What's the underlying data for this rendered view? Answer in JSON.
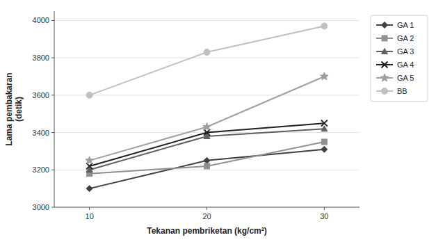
{
  "chart_data": {
    "type": "line",
    "x": [
      10,
      20,
      30
    ],
    "series": [
      {
        "name": "GA 1",
        "color": "#404040",
        "marker": "diamond",
        "values": [
          3100,
          3250,
          3310
        ]
      },
      {
        "name": "GA 2",
        "color": "#909090",
        "marker": "square",
        "values": [
          3180,
          3220,
          3350
        ]
      },
      {
        "name": "GA 3",
        "color": "#606060",
        "marker": "triangle",
        "values": [
          3200,
          3380,
          3420
        ]
      },
      {
        "name": "GA 4",
        "color": "#202020",
        "marker": "x",
        "values": [
          3220,
          3400,
          3450
        ]
      },
      {
        "name": "GA 5",
        "color": "#a0a0a0",
        "marker": "star",
        "values": [
          3250,
          3430,
          3700
        ]
      },
      {
        "name": "BB",
        "color": "#c0c0c0",
        "marker": "circle",
        "values": [
          3600,
          3830,
          3970
        ]
      }
    ],
    "x_label": "Tekanan pembriketan (kg/cm²)",
    "y_label": "Lama pembakaran\n(detik)",
    "xlim": [
      7,
      33
    ],
    "ylim": [
      3000,
      4050
    ],
    "xticks": [
      10,
      20,
      30
    ],
    "yticks": [
      3000,
      3200,
      3400,
      3600,
      3800,
      4000
    ],
    "grid": true,
    "legend": "right"
  }
}
